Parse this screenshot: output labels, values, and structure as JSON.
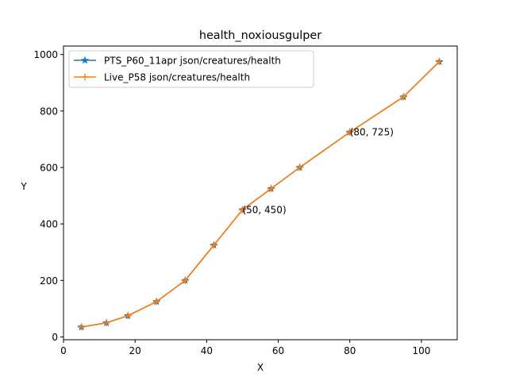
{
  "chart_data": {
    "type": "line",
    "title": "health_noxiousgulper",
    "xlabel": "X",
    "ylabel": "Y",
    "xlim": [
      0,
      110
    ],
    "ylim": [
      -10,
      1030
    ],
    "xticks": [
      0,
      20,
      40,
      60,
      80,
      100
    ],
    "yticks": [
      0,
      200,
      400,
      600,
      800,
      1000
    ],
    "grid": false,
    "legend_position": "top-left",
    "series": [
      {
        "name": "PTS_P60_11apr json/creatures/health",
        "color": "#1f77b4",
        "marker": "star",
        "x": [
          5,
          12,
          18,
          26,
          34,
          42,
          50,
          58,
          66,
          80,
          95,
          105
        ],
        "y": [
          35,
          50,
          75,
          125,
          200,
          325,
          450,
          525,
          600,
          725,
          850,
          975
        ]
      },
      {
        "name": "Live_P58 json/creatures/health",
        "color": "#ff7f0e",
        "marker": "plus",
        "x": [
          5,
          12,
          18,
          26,
          34,
          42,
          50,
          58,
          66,
          80,
          95,
          105
        ],
        "y": [
          35,
          50,
          75,
          125,
          200,
          325,
          450,
          525,
          600,
          725,
          850,
          975
        ]
      }
    ],
    "annotations": [
      {
        "x": 50,
        "y": 450,
        "text": "(50, 450)"
      },
      {
        "x": 80,
        "y": 725,
        "text": "(80, 725)"
      }
    ]
  }
}
